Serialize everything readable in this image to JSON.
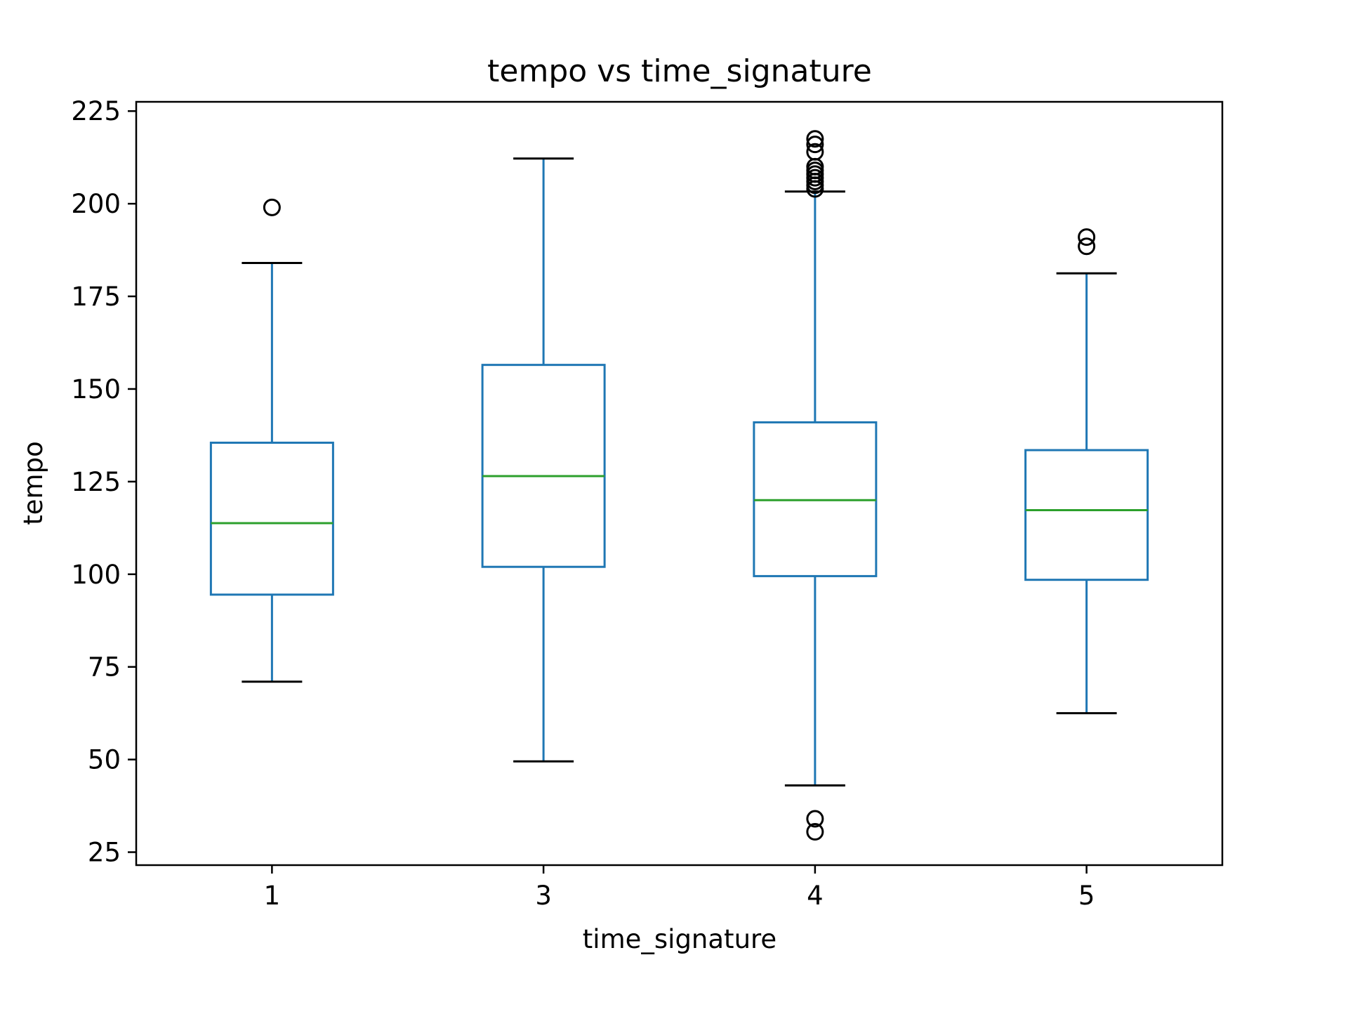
{
  "chart_data": {
    "type": "box",
    "title": "tempo vs time_signature",
    "xlabel": "time_signature",
    "ylabel": "tempo",
    "categories": [
      "1",
      "3",
      "4",
      "5"
    ],
    "ylim": [
      21.5,
      227.5
    ],
    "yticks": [
      25,
      50,
      75,
      100,
      125,
      150,
      175,
      200,
      225
    ],
    "grid": false,
    "legend": "none",
    "boxes": [
      {
        "category": "1",
        "whisker_low": 71,
        "q1": 94.5,
        "median": 113.8,
        "q3": 135.5,
        "whisker_high": 184,
        "outliers": [
          199
        ]
      },
      {
        "category": "3",
        "whisker_low": 49.5,
        "q1": 102,
        "median": 126.5,
        "q3": 156.5,
        "whisker_high": 212.2,
        "outliers": []
      },
      {
        "category": "4",
        "whisker_low": 43,
        "q1": 99.5,
        "median": 120,
        "q3": 141,
        "whisker_high": 203.3,
        "outliers": [
          30.5,
          34,
          204,
          205,
          206,
          207,
          208,
          209,
          210,
          214,
          216,
          217.5
        ]
      },
      {
        "category": "5",
        "whisker_low": 62.5,
        "q1": 98.5,
        "median": 117.3,
        "q3": 133.5,
        "whisker_high": 181.2,
        "outliers": [
          188.5,
          191
        ]
      }
    ],
    "colors": {
      "box": "#1f77b4",
      "median": "#2ca02c",
      "caps": "#000000",
      "outlier": "#000000"
    }
  }
}
